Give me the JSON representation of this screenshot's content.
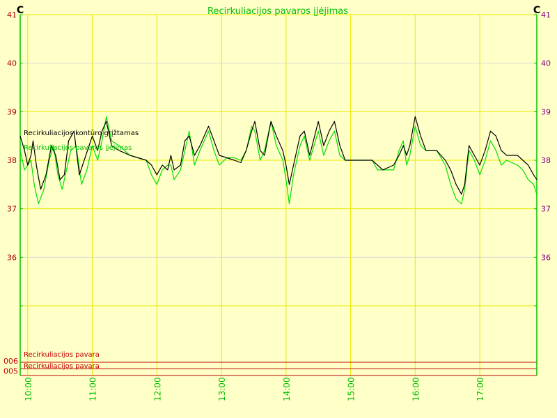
{
  "chart_data": {
    "type": "line",
    "title": "Recirkuliacijos pavaros įjėjimas",
    "y_unit_left": "C",
    "y_unit_right": "C",
    "ylim": [
      35,
      41
    ],
    "yticks": [
      36,
      37,
      38,
      39,
      40,
      41
    ],
    "x_range": [
      "09:53",
      "17:53"
    ],
    "x_ticks": [
      "10:00",
      "11:00",
      "12:00",
      "13:00",
      "14:00",
      "15:00",
      "16:00",
      "17:00"
    ],
    "grid": true,
    "colors": {
      "background": "#ffffc8",
      "grid": "#e8e800",
      "axis_left": "#00c000",
      "axis_right": "#00c000",
      "tick_label_left": "#b00000",
      "tick_label_right": "#800080",
      "title": "#00c000",
      "series_1": "#000000",
      "series_2": "#00e000",
      "digital": "#c00000"
    },
    "series": [
      {
        "name": "Recirkuliacijos kontūro grįžtamas",
        "color": "#000000",
        "points": [
          [
            "09:53",
            38.5
          ],
          [
            "09:57",
            38.2
          ],
          [
            "10:00",
            37.9
          ],
          [
            "10:03",
            38.1
          ],
          [
            "10:05",
            38.4
          ],
          [
            "10:08",
            37.9
          ],
          [
            "10:12",
            37.4
          ],
          [
            "10:17",
            37.7
          ],
          [
            "10:22",
            38.3
          ],
          [
            "10:26",
            38.1
          ],
          [
            "10:30",
            37.6
          ],
          [
            "10:34",
            37.7
          ],
          [
            "10:38",
            38.4
          ],
          [
            "10:43",
            38.6
          ],
          [
            "10:48",
            37.7
          ],
          [
            "10:54",
            38.1
          ],
          [
            "11:00",
            38.5
          ],
          [
            "11:05",
            38.2
          ],
          [
            "11:09",
            38.6
          ],
          [
            "11:13",
            38.8
          ],
          [
            "11:18",
            38.3
          ],
          [
            "11:25",
            38.2
          ],
          [
            "11:35",
            38.1
          ],
          [
            "11:50",
            38.0
          ],
          [
            "11:55",
            37.9
          ],
          [
            "12:00",
            37.7
          ],
          [
            "12:05",
            37.9
          ],
          [
            "12:10",
            37.8
          ],
          [
            "12:13",
            38.1
          ],
          [
            "12:16",
            37.8
          ],
          [
            "12:22",
            37.9
          ],
          [
            "12:26",
            38.4
          ],
          [
            "12:30",
            38.5
          ],
          [
            "12:35",
            38.1
          ],
          [
            "12:40",
            38.3
          ],
          [
            "12:48",
            38.7
          ],
          [
            "12:53",
            38.4
          ],
          [
            "12:58",
            38.1
          ],
          [
            "13:05",
            38.05
          ],
          [
            "13:12",
            38.0
          ],
          [
            "13:18",
            37.95
          ],
          [
            "13:23",
            38.2
          ],
          [
            "13:28",
            38.6
          ],
          [
            "13:31",
            38.8
          ],
          [
            "13:36",
            38.2
          ],
          [
            "13:40",
            38.1
          ],
          [
            "13:46",
            38.8
          ],
          [
            "13:51",
            38.5
          ],
          [
            "13:57",
            38.2
          ],
          [
            "14:00",
            37.9
          ],
          [
            "14:03",
            37.5
          ],
          [
            "14:07",
            37.9
          ],
          [
            "14:13",
            38.5
          ],
          [
            "14:17",
            38.6
          ],
          [
            "14:22",
            38.1
          ],
          [
            "14:30",
            38.8
          ],
          [
            "14:35",
            38.3
          ],
          [
            "14:40",
            38.6
          ],
          [
            "14:45",
            38.8
          ],
          [
            "14:50",
            38.3
          ],
          [
            "14:55",
            38.0
          ],
          [
            "15:00",
            38.0
          ],
          [
            "15:20",
            38.0
          ],
          [
            "15:25",
            37.9
          ],
          [
            "15:30",
            37.8
          ],
          [
            "15:40",
            37.9
          ],
          [
            "15:45",
            38.1
          ],
          [
            "15:49",
            38.3
          ],
          [
            "15:52",
            38.1
          ],
          [
            "15:55",
            38.3
          ],
          [
            "16:00",
            38.9
          ],
          [
            "16:05",
            38.5
          ],
          [
            "16:10",
            38.2
          ],
          [
            "16:20",
            38.2
          ],
          [
            "16:28",
            38.0
          ],
          [
            "16:33",
            37.8
          ],
          [
            "16:38",
            37.5
          ],
          [
            "16:43",
            37.3
          ],
          [
            "16:46",
            37.5
          ],
          [
            "16:50",
            38.3
          ],
          [
            "16:55",
            38.1
          ],
          [
            "17:00",
            37.9
          ],
          [
            "17:05",
            38.2
          ],
          [
            "17:10",
            38.6
          ],
          [
            "17:15",
            38.5
          ],
          [
            "17:20",
            38.2
          ],
          [
            "17:25",
            38.1
          ],
          [
            "17:35",
            38.1
          ],
          [
            "17:40",
            38.0
          ],
          [
            "17:45",
            37.9
          ],
          [
            "17:50",
            37.7
          ],
          [
            "17:53",
            37.6
          ]
        ]
      },
      {
        "name": "Recirkuliacijos pavaros įjėjimas",
        "color": "#00e000",
        "points": [
          [
            "09:53",
            38.2
          ],
          [
            "09:57",
            37.8
          ],
          [
            "10:00",
            37.9
          ],
          [
            "10:03",
            38.0
          ],
          [
            "10:06",
            37.5
          ],
          [
            "10:10",
            37.1
          ],
          [
            "10:15",
            37.4
          ],
          [
            "10:20",
            38.0
          ],
          [
            "10:24",
            38.3
          ],
          [
            "10:28",
            37.7
          ],
          [
            "10:32",
            37.4
          ],
          [
            "10:36",
            37.8
          ],
          [
            "10:40",
            38.2
          ],
          [
            "10:45",
            38.3
          ],
          [
            "10:50",
            37.5
          ],
          [
            "10:55",
            37.8
          ],
          [
            "11:00",
            38.3
          ],
          [
            "11:05",
            38.0
          ],
          [
            "11:09",
            38.4
          ],
          [
            "11:13",
            38.9
          ],
          [
            "11:18",
            38.4
          ],
          [
            "11:25",
            38.3
          ],
          [
            "11:35",
            38.1
          ],
          [
            "11:50",
            38.0
          ],
          [
            "11:55",
            37.7
          ],
          [
            "12:00",
            37.5
          ],
          [
            "12:05",
            37.8
          ],
          [
            "12:10",
            37.9
          ],
          [
            "12:13",
            37.9
          ],
          [
            "12:16",
            37.6
          ],
          [
            "12:22",
            37.8
          ],
          [
            "12:26",
            38.2
          ],
          [
            "12:30",
            38.6
          ],
          [
            "12:35",
            37.9
          ],
          [
            "12:40",
            38.2
          ],
          [
            "12:48",
            38.6
          ],
          [
            "12:53",
            38.2
          ],
          [
            "12:58",
            37.9
          ],
          [
            "13:05",
            38.05
          ],
          [
            "13:12",
            38.05
          ],
          [
            "13:18",
            38.0
          ],
          [
            "13:23",
            38.2
          ],
          [
            "13:28",
            38.7
          ],
          [
            "13:31",
            38.6
          ],
          [
            "13:36",
            38.0
          ],
          [
            "13:40",
            38.2
          ],
          [
            "13:46",
            38.8
          ],
          [
            "13:51",
            38.3
          ],
          [
            "13:57",
            38.0
          ],
          [
            "14:00",
            37.6
          ],
          [
            "14:03",
            37.1
          ],
          [
            "14:07",
            37.7
          ],
          [
            "14:13",
            38.3
          ],
          [
            "14:17",
            38.5
          ],
          [
            "14:22",
            38.0
          ],
          [
            "14:30",
            38.6
          ],
          [
            "14:35",
            38.1
          ],
          [
            "14:40",
            38.4
          ],
          [
            "14:45",
            38.6
          ],
          [
            "14:50",
            38.1
          ],
          [
            "14:55",
            38.0
          ],
          [
            "15:00",
            38.0
          ],
          [
            "15:20",
            38.0
          ],
          [
            "15:25",
            37.8
          ],
          [
            "15:30",
            37.8
          ],
          [
            "15:40",
            37.8
          ],
          [
            "15:45",
            38.2
          ],
          [
            "15:49",
            38.4
          ],
          [
            "15:52",
            37.9
          ],
          [
            "15:55",
            38.1
          ],
          [
            "16:00",
            38.7
          ],
          [
            "16:05",
            38.3
          ],
          [
            "16:10",
            38.2
          ],
          [
            "16:20",
            38.2
          ],
          [
            "16:28",
            37.9
          ],
          [
            "16:33",
            37.5
          ],
          [
            "16:38",
            37.2
          ],
          [
            "16:43",
            37.1
          ],
          [
            "16:46",
            37.4
          ],
          [
            "16:50",
            38.2
          ],
          [
            "16:55",
            38.0
          ],
          [
            "17:00",
            37.7
          ],
          [
            "17:05",
            38.0
          ],
          [
            "17:10",
            38.4
          ],
          [
            "17:15",
            38.2
          ],
          [
            "17:20",
            37.9
          ],
          [
            "17:25",
            38.0
          ],
          [
            "17:35",
            37.9
          ],
          [
            "17:40",
            37.8
          ],
          [
            "17:45",
            37.6
          ],
          [
            "17:50",
            37.5
          ],
          [
            "17:53",
            37.3
          ]
        ]
      }
    ],
    "digital_channels": [
      {
        "id": "006",
        "name": "Recirkuliacijos pavara",
        "state": 0
      },
      {
        "id": "005",
        "name": "Recirkuliacijos pavara",
        "state": 0
      }
    ]
  }
}
